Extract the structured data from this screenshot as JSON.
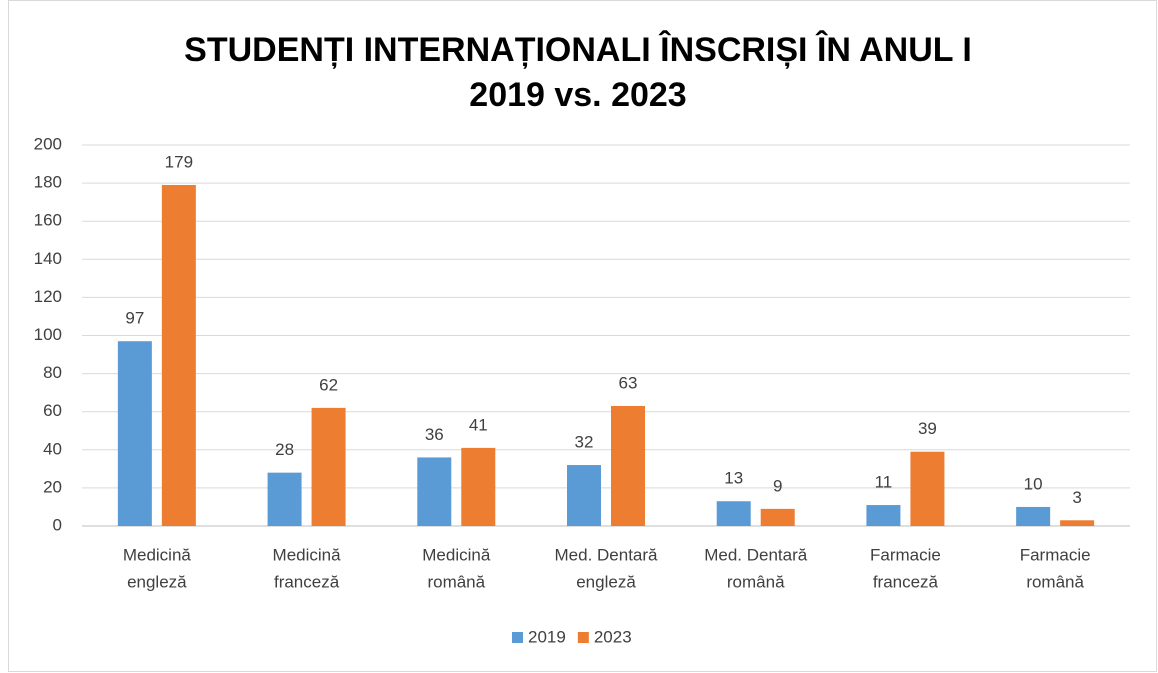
{
  "chart_data": {
    "type": "bar",
    "title": [
      "STUDENȚI INTERNAȚIONALI ÎNSCRIȘI ÎN ANUL I",
      "2019 vs. 2023"
    ],
    "categories": [
      [
        "Medicină",
        "engleză"
      ],
      [
        "Medicină",
        "franceză"
      ],
      [
        "Medicină",
        "română"
      ],
      [
        "Med. Dentară",
        "engleză"
      ],
      [
        "Med. Dentară",
        "română"
      ],
      [
        "Farmacie",
        "franceză"
      ],
      [
        "Farmacie",
        "română"
      ]
    ],
    "series": [
      {
        "name": "2019",
        "color": "#5b9bd5",
        "values": [
          97,
          28,
          36,
          32,
          13,
          11,
          10
        ]
      },
      {
        "name": "2023",
        "color": "#ed7d31",
        "values": [
          179,
          62,
          41,
          63,
          9,
          39,
          3
        ]
      }
    ],
    "ylim": [
      0,
      200
    ],
    "yticks": [
      0,
      20,
      40,
      60,
      80,
      100,
      120,
      140,
      160,
      180,
      200
    ],
    "grid": true,
    "legend": "bottom"
  }
}
